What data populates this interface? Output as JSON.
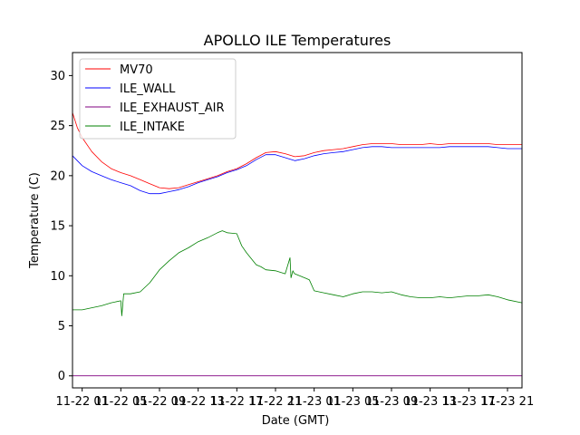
{
  "chart_data": {
    "type": "line",
    "title": "APOLLO ILE Temperatures",
    "xlabel": "Date (GMT)",
    "ylabel": "Temperature (C)",
    "x_unit": "hours since 11-22 00:00 GMT",
    "xlim": [
      0.0,
      46.5
    ],
    "ylim": [
      -1.2,
      32.3
    ],
    "xticks": [
      {
        "x": 1,
        "label": "11-22 01"
      },
      {
        "x": 5,
        "label": "11-22 05"
      },
      {
        "x": 9,
        "label": "11-22 09"
      },
      {
        "x": 13,
        "label": "11-22 13"
      },
      {
        "x": 17,
        "label": "11-22 17"
      },
      {
        "x": 21,
        "label": "11-22 21"
      },
      {
        "x": 25,
        "label": "11-23 01"
      },
      {
        "x": 29,
        "label": "11-23 05"
      },
      {
        "x": 33,
        "label": "11-23 09"
      },
      {
        "x": 37,
        "label": "11-23 13"
      },
      {
        "x": 41,
        "label": "11-23 17"
      },
      {
        "x": 45,
        "label": "11-23 21"
      }
    ],
    "yticks": [
      0,
      5,
      10,
      15,
      20,
      25,
      30
    ],
    "grid": false,
    "legend_position": "upper-left",
    "series": [
      {
        "name": "MV70",
        "color": "#ff0000",
        "x": [
          0,
          0.5,
          1,
          2,
          3,
          4,
          5,
          6,
          7,
          8,
          9,
          10,
          11,
          12,
          13,
          14,
          15,
          16,
          17,
          18,
          19,
          20,
          21,
          22,
          23,
          24,
          25,
          26,
          27,
          28,
          29,
          30,
          31,
          32,
          33,
          34,
          35,
          36,
          37,
          38,
          39,
          40,
          41,
          42,
          43,
          44,
          45,
          46.5
        ],
        "y": [
          26.3,
          24.8,
          23.8,
          22.4,
          21.4,
          20.7,
          20.3,
          20.0,
          19.6,
          19.2,
          18.8,
          18.7,
          18.8,
          19.1,
          19.4,
          19.7,
          20.0,
          20.4,
          20.7,
          21.2,
          21.8,
          22.3,
          22.4,
          22.2,
          21.9,
          22.0,
          22.3,
          22.5,
          22.6,
          22.7,
          22.9,
          23.1,
          23.2,
          23.2,
          23.2,
          23.1,
          23.1,
          23.1,
          23.2,
          23.1,
          23.2,
          23.2,
          23.2,
          23.2,
          23.2,
          23.1,
          23.1,
          23.1
        ]
      },
      {
        "name": "ILE_WALL",
        "color": "#0000ff",
        "x": [
          0,
          0.5,
          1,
          2,
          3,
          4,
          5,
          6,
          7,
          8,
          9,
          10,
          11,
          12,
          13,
          14,
          15,
          16,
          17,
          18,
          19,
          20,
          21,
          22,
          23,
          24,
          25,
          26,
          27,
          28,
          29,
          30,
          31,
          32,
          33,
          34,
          35,
          36,
          37,
          38,
          39,
          40,
          41,
          42,
          43,
          44,
          45,
          46.5
        ],
        "y": [
          22.0,
          21.5,
          21.0,
          20.4,
          20.0,
          19.6,
          19.3,
          19.0,
          18.5,
          18.2,
          18.2,
          18.4,
          18.6,
          18.9,
          19.3,
          19.6,
          19.9,
          20.3,
          20.6,
          21.0,
          21.6,
          22.1,
          22.1,
          21.8,
          21.5,
          21.7,
          22.0,
          22.2,
          22.3,
          22.4,
          22.6,
          22.8,
          22.9,
          22.9,
          22.8,
          22.8,
          22.8,
          22.8,
          22.8,
          22.8,
          22.9,
          22.9,
          22.9,
          22.9,
          22.9,
          22.8,
          22.7,
          22.7
        ]
      },
      {
        "name": "ILE_EXHAUST_AIR",
        "color": "#800080",
        "x": [
          0,
          46.5
        ],
        "y": [
          0.0,
          0.0
        ]
      },
      {
        "name": "ILE_INTAKE",
        "color": "#008000",
        "x": [
          0,
          1,
          2,
          3,
          4,
          5,
          5.1,
          5.3,
          6,
          7,
          8,
          9,
          10,
          11,
          12,
          13,
          14,
          15,
          15.5,
          16,
          17,
          17.5,
          18,
          19,
          19.5,
          20,
          21,
          22,
          22.5,
          22.6,
          22.8,
          22.9,
          23,
          24,
          24.5,
          25,
          26,
          27,
          28,
          29,
          30,
          31,
          32,
          33,
          34,
          35,
          36,
          37,
          38,
          39,
          40,
          41,
          42,
          43,
          44,
          45,
          46.5
        ],
        "y": [
          6.6,
          6.6,
          6.8,
          7.0,
          7.3,
          7.5,
          6.0,
          8.2,
          8.2,
          8.4,
          9.3,
          10.6,
          11.5,
          12.3,
          12.8,
          13.4,
          13.8,
          14.3,
          14.5,
          14.3,
          14.2,
          13.0,
          12.3,
          11.1,
          10.9,
          10.6,
          10.5,
          10.2,
          11.8,
          9.8,
          10.5,
          10.3,
          10.2,
          9.8,
          9.6,
          8.5,
          8.3,
          8.1,
          7.9,
          8.2,
          8.4,
          8.4,
          8.3,
          8.4,
          8.1,
          7.9,
          7.8,
          7.8,
          7.9,
          7.8,
          7.9,
          8.0,
          8.0,
          8.1,
          7.9,
          7.6,
          7.3
        ]
      }
    ]
  }
}
